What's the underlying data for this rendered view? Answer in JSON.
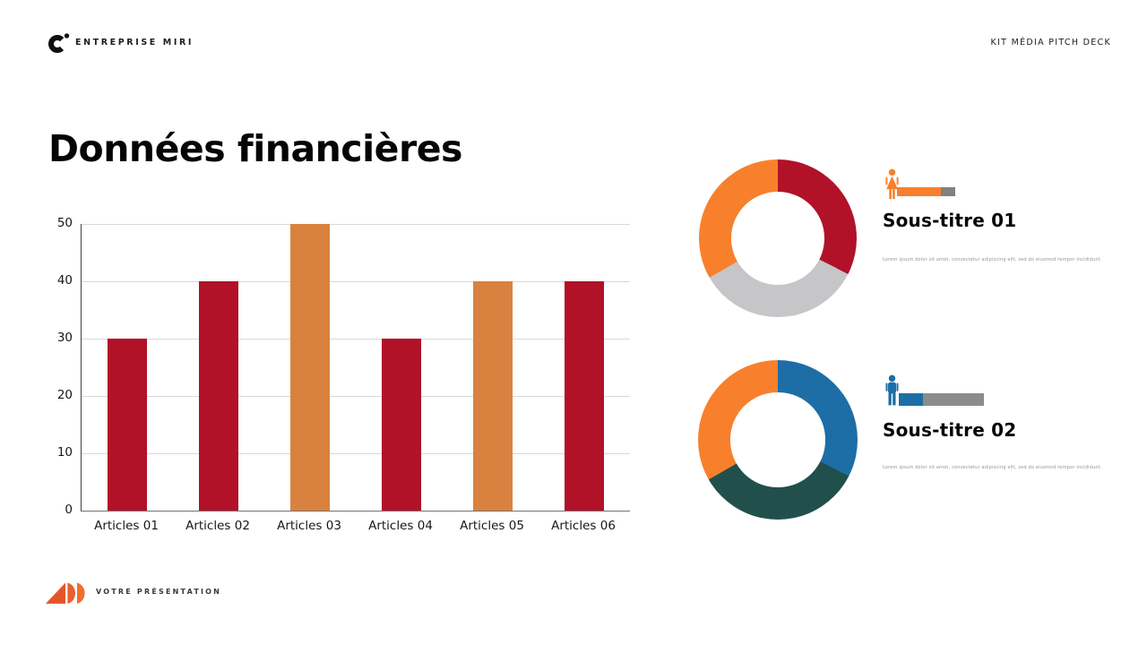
{
  "slide": {
    "header": {
      "brand": "ENTREPRISE MIRI",
      "kit_label": "KIT MÉDIA PITCH DECK"
    },
    "title": "Données financières",
    "footer": {
      "label": "VOTRE PRÉSENTATION"
    }
  },
  "chart_data": [
    {
      "id": "bar-chart",
      "type": "bar",
      "categories": [
        "Articles 01",
        "Articles 02",
        "Articles 03",
        "Articles 04",
        "Articles 05",
        "Articles 06"
      ],
      "values": [
        30,
        40,
        50,
        30,
        40,
        40
      ],
      "bar_colors": [
        "#b11228",
        "#b11228",
        "#d9823f",
        "#b11228",
        "#d9823f",
        "#b11228"
      ],
      "title": "",
      "xlabel": "",
      "ylabel": "",
      "ylim": [
        0,
        50
      ],
      "yticks": [
        0,
        10,
        20,
        30,
        40,
        50
      ],
      "grid": true,
      "legend": false
    },
    {
      "id": "donut-01",
      "type": "donut",
      "linked_title": "Sous-titre 01",
      "start_angle_deg": 0,
      "hole_ratio": 0.59,
      "segments": [
        {
          "label": "segment-1",
          "color": "#b11228",
          "percent": 32.5
        },
        {
          "label": "segment-2",
          "color": "#c6c5c7",
          "percent": 34.2
        },
        {
          "label": "segment-3",
          "color": "#f8802c",
          "percent": 33.3
        }
      ]
    },
    {
      "id": "donut-02",
      "type": "donut",
      "linked_title": "Sous-titre 02",
      "start_angle_deg": 0,
      "hole_ratio": 0.59,
      "segments": [
        {
          "label": "segment-1",
          "color": "#1d6ea6",
          "percent": 32.5
        },
        {
          "label": "segment-2",
          "color": "#21504c",
          "percent": 34.2
        },
        {
          "label": "segment-3",
          "color": "#f8802c",
          "percent": 33.3
        }
      ]
    }
  ],
  "subsections": [
    {
      "title": "Sous-titre 01",
      "description": "Lorem ipsum dolor sit amet, consectetur adipiscing elit, sed do eiusmod tempor incididunt.",
      "icon": "female-person-icon",
      "icon_color": "#f8802c",
      "progress": {
        "percent": 75,
        "fill_color": "#f8802c",
        "track_color": "#7f8184"
      }
    },
    {
      "title": "Sous-titre 02",
      "description": "Lorem ipsum dolor sit amet, consectetur adipiscing elit, sed do eiusmod tempor incididunt.",
      "icon": "male-person-icon",
      "icon_color": "#1d6ea6",
      "progress": {
        "percent": 28,
        "fill_color": "#1d6ea6",
        "track_color": "#8a8c8e"
      }
    }
  ]
}
